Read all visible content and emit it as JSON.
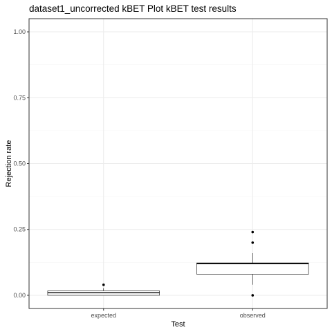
{
  "chart_data": {
    "type": "boxplot",
    "title": "dataset1_uncorrected kBET Plot kBET test results",
    "xlabel": "Test",
    "ylabel": "Rejection rate",
    "categories": [
      "expected",
      "observed"
    ],
    "ylim": [
      0,
      1
    ],
    "yticks": [
      0.0,
      0.25,
      0.5,
      0.75,
      1.0
    ],
    "ytick_labels": [
      "0.00",
      "0.25",
      "0.50",
      "0.75",
      "1.00"
    ],
    "grid": true,
    "boxes": [
      {
        "category": "expected",
        "lower_whisker": 0.0,
        "q1": 0.0,
        "median": 0.01,
        "q3": 0.017,
        "upper_whisker": 0.027,
        "outliers": [
          0.04
        ]
      },
      {
        "category": "observed",
        "lower_whisker": 0.04,
        "q1": 0.08,
        "median": 0.12,
        "q3": 0.123,
        "upper_whisker": 0.16,
        "outliers": [
          0.24,
          0.2,
          0.0
        ]
      }
    ],
    "colors": {
      "panel_border": "#333333",
      "grid_major": "#ebebeb",
      "grid_minor": "#f5f5f5",
      "box_fill": "#ffffff",
      "box_stroke": "#000000",
      "point": "#000000"
    }
  }
}
